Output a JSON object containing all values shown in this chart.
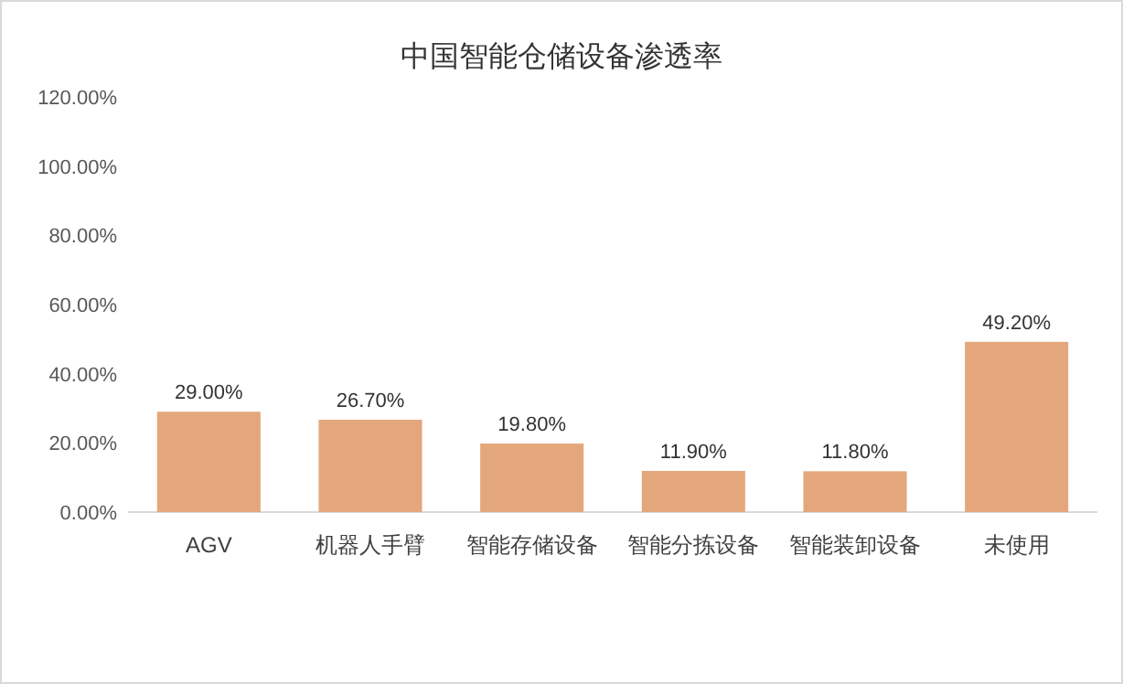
{
  "chart_data": {
    "type": "bar",
    "title": "中国智能仓储设备渗透率",
    "categories": [
      "AGV",
      "机器人手臂",
      "智能存储设备",
      "智能分拣设备",
      "智能装卸设备",
      "未使用"
    ],
    "series": [
      {
        "color": "#e4a77b",
        "values": [
          29.0,
          26.7,
          19.8,
          11.9,
          11.8,
          49.2
        ],
        "value_labels": [
          "29.00%",
          "26.70%",
          "19.80%",
          "11.90%",
          "11.80%",
          "49.20%"
        ]
      }
    ],
    "ylim": [
      0,
      120
    ],
    "yticks": [
      {
        "value": 0,
        "label": "0.00%"
      },
      {
        "value": 20,
        "label": "20.00%"
      },
      {
        "value": 40,
        "label": "40.00%"
      },
      {
        "value": 60,
        "label": "60.00%"
      },
      {
        "value": 80,
        "label": "80.00%"
      },
      {
        "value": 100,
        "label": "100.00%"
      },
      {
        "value": 120,
        "label": "120.00%"
      }
    ]
  }
}
